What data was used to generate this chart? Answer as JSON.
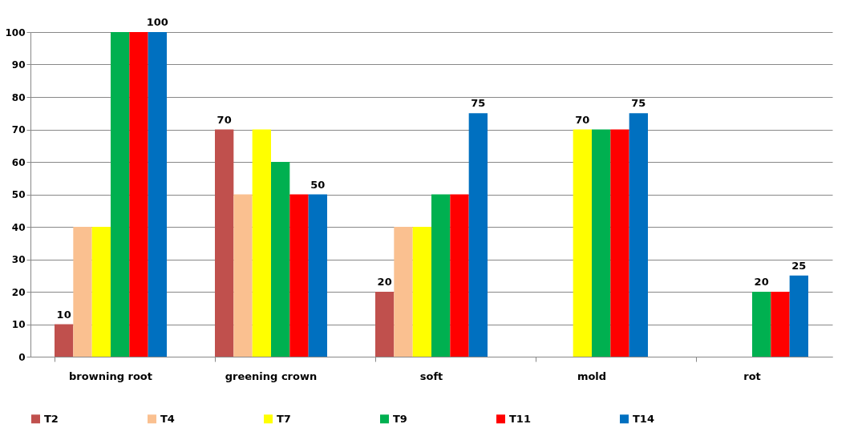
{
  "chart_data": {
    "type": "bar",
    "categories": [
      "browning root",
      "greening crown",
      "soft",
      "mold",
      "rot"
    ],
    "series": [
      {
        "name": "T2",
        "color": "#c0504d",
        "values": [
          10,
          70,
          20,
          null,
          null
        ],
        "value_labels": [
          "10",
          "70",
          "20",
          null,
          null
        ]
      },
      {
        "name": "T4",
        "color": "#fac090",
        "values": [
          40,
          50,
          40,
          null,
          null
        ],
        "value_labels": [
          null,
          null,
          null,
          null,
          null
        ]
      },
      {
        "name": "T7",
        "color": "#ffff00",
        "values": [
          40,
          70,
          40,
          70,
          null
        ],
        "value_labels": [
          null,
          null,
          null,
          "70",
          null
        ]
      },
      {
        "name": "T9",
        "color": "#00b050",
        "values": [
          100,
          60,
          50,
          70,
          20
        ],
        "value_labels": [
          null,
          null,
          null,
          null,
          "20"
        ]
      },
      {
        "name": "T11",
        "color": "#ff0000",
        "values": [
          100,
          50,
          50,
          70,
          20
        ],
        "value_labels": [
          null,
          null,
          null,
          null,
          null
        ]
      },
      {
        "name": "T14",
        "color": "#0070c0",
        "values": [
          100,
          50,
          75,
          75,
          25
        ],
        "value_labels": [
          "100",
          "50",
          "75",
          "75",
          "25"
        ]
      }
    ],
    "ylim": [
      0,
      100
    ],
    "yticks": [
      0,
      10,
      20,
      30,
      40,
      50,
      60,
      70,
      80,
      90,
      100
    ],
    "grid": "y",
    "legend": "bottom"
  }
}
